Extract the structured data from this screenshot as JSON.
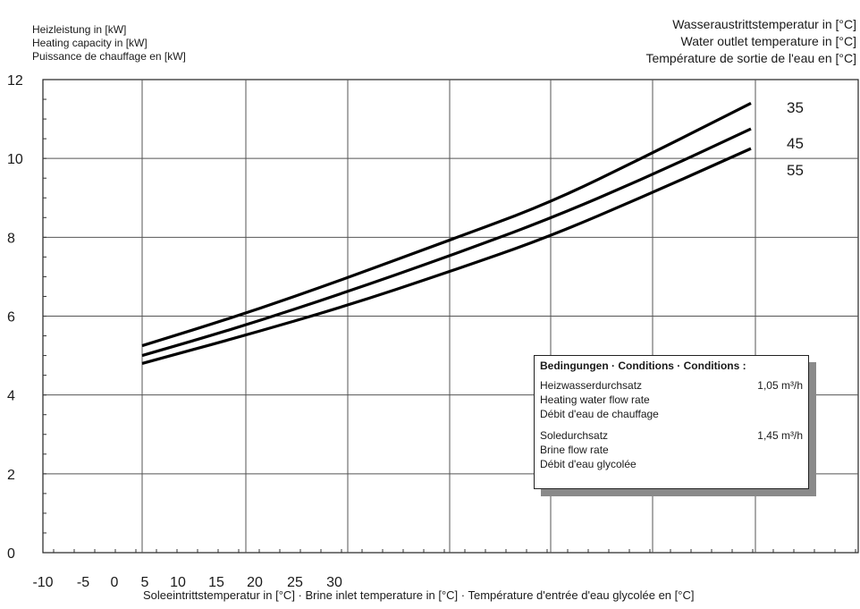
{
  "left_labels": [
    "Heizleistung in [kW]",
    "Heating capacity in [kW]",
    "Puissance de chauffage en [kW]"
  ],
  "right_labels": [
    "Wasseraustrittstemperatur in [°C]",
    "Water outlet temperature in [°C]",
    "Température de sortie de l'eau en [°C]"
  ],
  "conditions": {
    "title": "Bedingungen · Conditions · Conditions :",
    "heating_flow": [
      "Heizwasserdurchsatz",
      "Heating water flow rate",
      "Débit d'eau de chauffage"
    ],
    "heating_flow_value": "1,05 m³/h",
    "brine_flow": [
      "Soledurchsatz",
      "Brine flow rate",
      "Débit d'eau glycolée"
    ],
    "brine_flow_value": "1,45 m³/h"
  },
  "xlabel": "Soleeintrittstemperatur in [°C] · Brine inlet temperature in [°C] · Température d'entrée d'eau glycolée en [°C]",
  "chart_data": {
    "type": "line",
    "xlim": [
      -10,
      30
    ],
    "ylim": [
      0,
      12
    ],
    "x_ticks": [
      -10,
      -5,
      0,
      5,
      10,
      15,
      20,
      25,
      30
    ],
    "y_ticks": [
      0,
      2,
      4,
      6,
      8,
      10,
      12
    ],
    "grid": true,
    "series": [
      {
        "name": "35",
        "x": [
          -5,
          0,
          5,
          10,
          15,
          20,
          25
        ],
        "values": [
          5.25,
          6.05,
          6.95,
          7.9,
          8.85,
          10.1,
          11.4
        ]
      },
      {
        "name": "45",
        "x": [
          -5,
          0,
          5,
          10,
          15,
          20,
          25
        ],
        "values": [
          5.0,
          5.75,
          6.6,
          7.5,
          8.45,
          9.55,
          10.75
        ]
      },
      {
        "name": "55",
        "x": [
          -5,
          0,
          5,
          10,
          15,
          20,
          25
        ],
        "values": [
          4.8,
          5.5,
          6.25,
          7.1,
          8.0,
          9.1,
          10.25
        ]
      }
    ]
  }
}
